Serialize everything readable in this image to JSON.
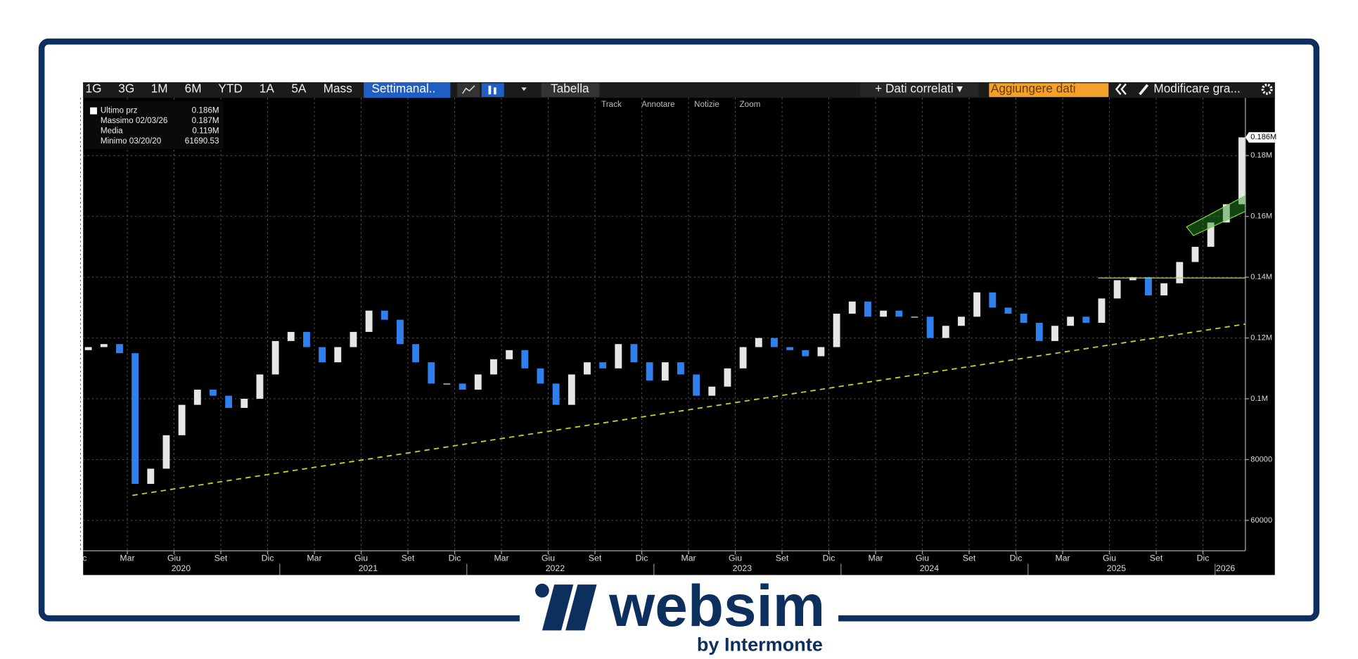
{
  "toolbar": {
    "ranges": [
      "1G",
      "3G",
      "1M",
      "6M",
      "YTD",
      "1A",
      "5A",
      "Mass"
    ],
    "frequency": "Settimanal..",
    "table": "Tabella",
    "related": "+ Dati correlati ▾",
    "add_data": "Aggiungere dati",
    "edit": "Modificare gra...",
    "tools": [
      "Track",
      "Annotare",
      "Notizie",
      "Zoom"
    ]
  },
  "chart_data": {
    "type": "candlestick",
    "legend": [
      {
        "name": "Ultimo prz",
        "value": "0.186M"
      },
      {
        "name": "Massimo 02/03/26",
        "value": "0.187M"
      },
      {
        "name": "Media",
        "value": "0.119M"
      },
      {
        "name": "Minimo 03/20/20",
        "value": "61690.53"
      }
    ],
    "last_label": "0.186M",
    "up_color": "#e6e6e6",
    "down_color": "#2f80ed",
    "grid": true,
    "x": [
      "2019-12",
      "2020-01",
      "2020-02",
      "2020-03",
      "2020-04",
      "2020-05",
      "2020-06",
      "2020-07",
      "2020-08",
      "2020-09",
      "2020-10",
      "2020-11",
      "2020-12",
      "2021-01",
      "2021-02",
      "2021-03",
      "2021-04",
      "2021-05",
      "2021-06",
      "2021-07",
      "2021-08",
      "2021-09",
      "2021-10",
      "2021-11",
      "2021-12",
      "2022-01",
      "2022-02",
      "2022-03",
      "2022-04",
      "2022-05",
      "2022-06",
      "2022-07",
      "2022-08",
      "2022-09",
      "2022-10",
      "2022-11",
      "2022-12",
      "2023-01",
      "2023-02",
      "2023-03",
      "2023-04",
      "2023-05",
      "2023-06",
      "2023-07",
      "2023-08",
      "2023-09",
      "2023-10",
      "2023-11",
      "2023-12",
      "2024-01",
      "2024-02",
      "2024-03",
      "2024-04",
      "2024-05",
      "2024-06",
      "2024-07",
      "2024-08",
      "2024-09",
      "2024-10",
      "2024-11",
      "2024-12",
      "2025-01",
      "2025-02",
      "2025-03",
      "2025-04",
      "2025-05",
      "2025-06",
      "2025-07",
      "2025-08",
      "2025-09",
      "2025-10",
      "2025-11",
      "2025-12",
      "2026-01",
      "2026-02"
    ],
    "open": [
      116000,
      117000,
      118000,
      115000,
      72000,
      77000,
      88000,
      98000,
      103000,
      101000,
      97000,
      100000,
      108000,
      119000,
      122000,
      117000,
      112000,
      117000,
      122000,
      129000,
      126000,
      118000,
      112000,
      105000,
      105000,
      103000,
      108000,
      113000,
      116000,
      110000,
      105000,
      98000,
      108000,
      112000,
      110000,
      118000,
      112000,
      106000,
      112000,
      108000,
      101000,
      104000,
      110000,
      117000,
      120000,
      117000,
      116000,
      114000,
      117000,
      128000,
      132000,
      127000,
      129000,
      127000,
      127000,
      120000,
      124000,
      127000,
      135000,
      130000,
      128000,
      125000,
      119000,
      124000,
      127000,
      125000,
      133000,
      139000,
      140000,
      134000,
      138000,
      145000,
      150000,
      158000,
      164000
    ],
    "close": [
      117000,
      118000,
      115000,
      72000,
      77000,
      88000,
      98000,
      103000,
      101000,
      97000,
      100000,
      108000,
      119000,
      122000,
      117000,
      112000,
      117000,
      122000,
      129000,
      126000,
      118000,
      112000,
      105000,
      105000,
      103000,
      108000,
      113000,
      116000,
      110000,
      105000,
      98000,
      108000,
      112000,
      110000,
      118000,
      112000,
      106000,
      112000,
      108000,
      101000,
      104000,
      110000,
      117000,
      120000,
      117000,
      116000,
      114000,
      117000,
      128000,
      132000,
      127000,
      129000,
      127000,
      127000,
      120000,
      124000,
      127000,
      135000,
      130000,
      128000,
      125000,
      119000,
      124000,
      127000,
      125000,
      133000,
      139000,
      140000,
      134000,
      138000,
      145000,
      150000,
      158000,
      164000,
      186000
    ],
    "ylim": [
      50000,
      199000
    ],
    "yticks": [
      60000,
      80000,
      {
        "value": 100000,
        "label": "0.1M"
      },
      {
        "value": 120000,
        "label": "0.12M"
      },
      {
        "value": 140000,
        "label": "0.14M"
      },
      {
        "value": 160000,
        "label": "0.16M"
      },
      {
        "value": 180000,
        "label": "0.18M"
      }
    ],
    "xticks": [
      {
        "value": "2019-12",
        "label": "Dic"
      },
      {
        "value": "2020-03",
        "label": "Mar"
      },
      {
        "value": "2020-06",
        "label": "Giu"
      },
      {
        "value": "2020-09",
        "label": "Set"
      },
      {
        "value": "2020-12",
        "label": "Dic"
      },
      {
        "value": "2021-03",
        "label": "Mar"
      },
      {
        "value": "2021-06",
        "label": "Giu"
      },
      {
        "value": "2021-09",
        "label": "Set"
      },
      {
        "value": "2021-12",
        "label": "Dic"
      },
      {
        "value": "2022-03",
        "label": "Mar"
      },
      {
        "value": "2022-06",
        "label": "Giu"
      },
      {
        "value": "2022-09",
        "label": "Set"
      },
      {
        "value": "2022-12",
        "label": "Dic"
      },
      {
        "value": "2023-03",
        "label": "Mar"
      },
      {
        "value": "2023-06",
        "label": "Giu"
      },
      {
        "value": "2023-09",
        "label": "Set"
      },
      {
        "value": "2023-12",
        "label": "Dic"
      },
      {
        "value": "2024-03",
        "label": "Mar"
      },
      {
        "value": "2024-06",
        "label": "Giu"
      },
      {
        "value": "2024-09",
        "label": "Set"
      },
      {
        "value": "2024-12",
        "label": "Dic"
      },
      {
        "value": "2025-03",
        "label": "Mar"
      },
      {
        "value": "2025-06",
        "label": "Giu"
      },
      {
        "value": "2025-09",
        "label": "Set"
      },
      {
        "value": "2025-12",
        "label": "Dic"
      }
    ],
    "year_labels": [
      "2020",
      "2021",
      "2022",
      "2023",
      "2024",
      "2025",
      "2026"
    ]
  },
  "logo": {
    "name": "websim",
    "tagline": "by Intermonte"
  }
}
